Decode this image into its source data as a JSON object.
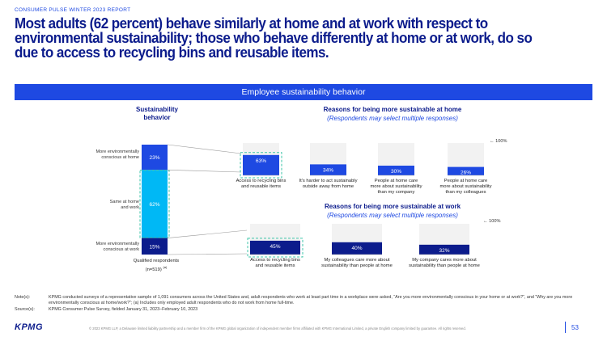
{
  "header": {
    "eyebrow": "CONSUMER PULSE WINTER 2023 REPORT",
    "headline": "Most adults (62 percent) behave similarly at home and at work with respect to environmental sustainability; those who behave differently at home or at work, do so due to access to recycling bins and reusable items."
  },
  "banner": {
    "title": "Employee sustainability behavior"
  },
  "left_section": {
    "title_line1": "Sustainability",
    "title_line2": "behavior",
    "row_labels": [
      [
        "More environmentally",
        "conscious at home"
      ],
      [
        "Same at home",
        "and work"
      ],
      [
        "More environmentally",
        "conscious at work"
      ]
    ],
    "axis_label_line1": "Qualified respondents",
    "axis_label_line2": "(n=519)",
    "axis_label_sup": "(a)"
  },
  "home_section": {
    "title": "Reasons for being more sustainable at home",
    "subtitle": "(Respondents may select multiple responses)",
    "marker": "100%"
  },
  "work_section": {
    "title": "Reasons for being more sustainable at work",
    "subtitle": "(Respondents may select multiple responses)",
    "marker": "100%"
  },
  "chart_data": [
    {
      "type": "bar",
      "title": "Sustainability behavior",
      "stacked": true,
      "categories": [
        "Qualified respondents (n=519)"
      ],
      "series": [
        {
          "name": "More environmentally conscious at home",
          "values": [
            23
          ],
          "color": "#1e49e2"
        },
        {
          "name": "Same at home and work",
          "values": [
            62
          ],
          "color": "#00b8f5"
        },
        {
          "name": "More environmentally conscious at work",
          "values": [
            15
          ],
          "color": "#0c1c8c"
        }
      ],
      "ylim": [
        0,
        100
      ]
    },
    {
      "type": "bar",
      "title": "Reasons for being more sustainable at home",
      "subtitle": "(Respondents may select multiple responses)",
      "categories": [
        [
          "Access to recycling bins",
          "and reusable items"
        ],
        [
          "It's harder to act sustainably",
          "outside away from home"
        ],
        [
          "People at home care",
          "more about sustainability",
          "than my company"
        ],
        [
          "People at home care",
          "more about sustainability",
          "than my colleagues"
        ]
      ],
      "values": [
        63,
        34,
        30,
        26
      ],
      "value_labels": [
        "63%",
        "34%",
        "30%",
        "26%"
      ],
      "ylim": [
        0,
        100
      ],
      "highlighted": [
        0
      ],
      "color": "#1e49e2"
    },
    {
      "type": "bar",
      "title": "Reasons for being more sustainable at work",
      "subtitle": "(Respondents may select multiple responses)",
      "categories": [
        [
          "Access to recycling bins",
          "and reusable items"
        ],
        [
          "My colleagues care more about",
          "sustainability than people at home"
        ],
        [
          "My company cares more about",
          "sustainability than people at home"
        ]
      ],
      "values": [
        45,
        40,
        32
      ],
      "value_labels": [
        "45%",
        "40%",
        "32%"
      ],
      "ylim": [
        0,
        100
      ],
      "highlighted": [
        0
      ],
      "color": "#0c1c8c"
    }
  ],
  "stack_labels": [
    "23%",
    "62%",
    "15%"
  ],
  "colors": {
    "brand_dark": "#0c1c8c",
    "brand": "#1e49e2",
    "cyan": "#00b8f5",
    "highlight": "#3cc5a8"
  },
  "notes": {
    "label": "Note(s):",
    "text": "KPMG conducted surveys of a representative sample of 1,091 consumers across the United States and, adult respondents who work at least part time in a workplace were asked, “Are you more environmentally conscious in your home or at work?”, and “Why are you more environmentally conscious at home/work?”; (a) Includes only employed adult respondents who do not work from home full-time.",
    "source_label": "Source(s):",
    "source_text": "KPMG Consumer Pulse Survey, fielded January 31, 2023–February 10, 2023"
  },
  "footer": {
    "logo": "KPMG",
    "copyright": "© 2023 KPMG LLP, a Delaware limited liability partnership and a member firm of the KPMG global organization of independent member firms affiliated with KPMG International Limited, a private English company limited by guarantee. All rights reserved.",
    "page": "53"
  }
}
